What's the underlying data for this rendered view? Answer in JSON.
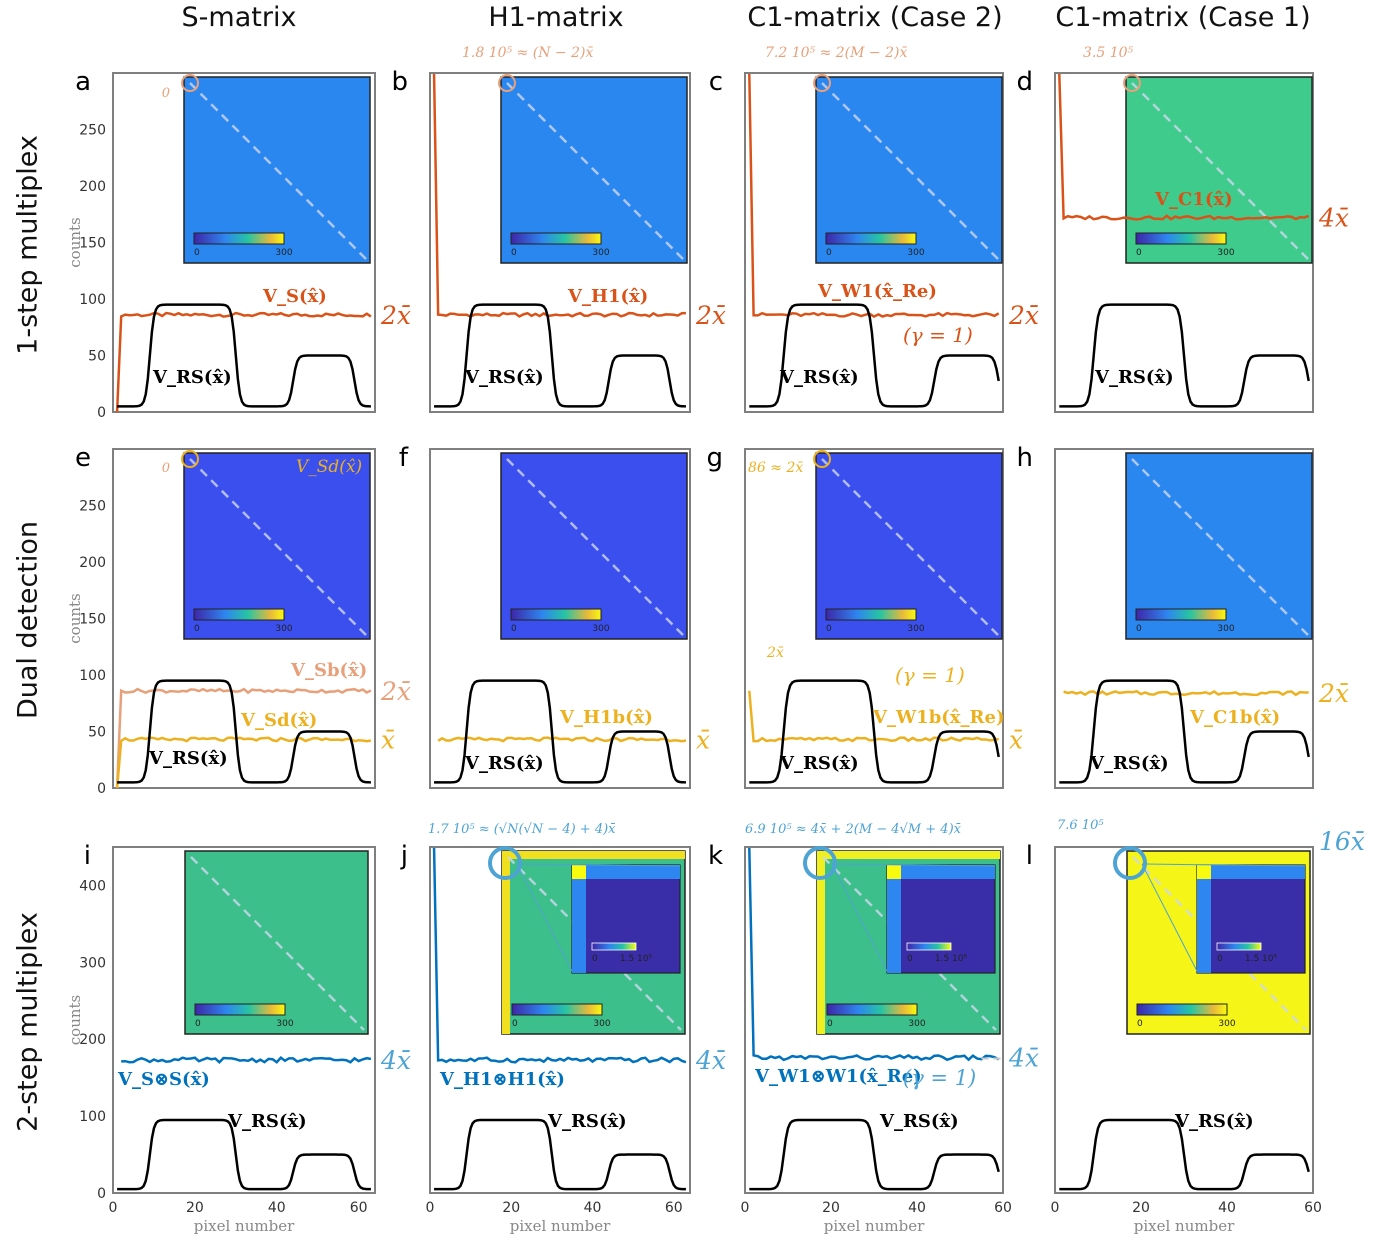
{
  "column_titles": [
    "S-matrix",
    "H1-matrix",
    "C1-matrix (Case 2)",
    "C1-matrix (Case 1)"
  ],
  "row_titles": [
    "1-step multiplex",
    "Dual detection",
    "2-step multiplex"
  ],
  "colors": {
    "orange": "#d95319",
    "light_orange": "#e8a07a",
    "yellow": "#edb120",
    "blue": "#0072bd",
    "light_blue": "#4da3d4",
    "black": "#000000",
    "gray_axis": "#7f7f7f",
    "dashed_ref": "#c8c8c8"
  },
  "chart_data": [
    {
      "type": "line",
      "panel": "a",
      "xlabel": "",
      "ylabel": "counts",
      "xlim": [
        0,
        64
      ],
      "ylim": [
        0,
        300
      ],
      "yticks": [
        0,
        50,
        100,
        150,
        200,
        250
      ],
      "series": [
        {
          "name": "V_S(x̂)",
          "color": "#d95319",
          "level": 86,
          "start": 0
        },
        {
          "name": "V_RS(x̂)",
          "color": "#000000",
          "profile": "rs"
        }
      ],
      "annotations": [
        {
          "text": "0",
          "color": "#e8a07a"
        }
      ],
      "right_label": "2x̄",
      "right_label_color": "#d95319",
      "series_labels": [
        {
          "text": "V_S(x̂)"
        },
        {
          "text": "V_RS(x̂)"
        }
      ],
      "inset": {
        "fill": "#2b87f0",
        "cbar_min": "0",
        "cbar_max": "300"
      }
    },
    {
      "type": "line",
      "panel": "b",
      "xlim": [
        0,
        64
      ],
      "ylim": [
        0,
        300
      ],
      "series": [
        {
          "name": "V_H1(x̂)",
          "color": "#d95319",
          "level": 86,
          "spike": 180000.0
        },
        {
          "name": "V_RS(x̂)",
          "color": "#000000",
          "profile": "rs"
        }
      ],
      "annotations": [
        {
          "text": "1.8 10⁵ ≈ (N − 2)x̄",
          "color": "#e8a07a"
        }
      ],
      "right_label": "2x̄",
      "right_label_color": "#d95319",
      "series_labels": [
        {
          "text": "V_H1(x̂)"
        },
        {
          "text": "V_RS(x̂)"
        }
      ],
      "inset": {
        "fill": "#2b87f0",
        "cbar_min": "0",
        "cbar_max": "300"
      }
    },
    {
      "type": "line",
      "panel": "c",
      "xlim": [
        0,
        60
      ],
      "ylim": [
        0,
        300
      ],
      "series": [
        {
          "name": "V_W1(x̂_Re)",
          "color": "#d95319",
          "level": 86,
          "spike": 720000.0
        },
        {
          "name": "V_RS(x̂)",
          "color": "#000000",
          "profile": "rs"
        }
      ],
      "annotations": [
        {
          "text": "7.2 10⁵ ≈ 2(M − 2)x̄",
          "color": "#e8a07a"
        },
        {
          "text": "(γ = 1)",
          "color": "#d95319"
        }
      ],
      "right_label": "2x̄",
      "right_label_color": "#d95319",
      "series_labels": [
        {
          "text": "V_W1(x̂_Re)"
        },
        {
          "text": "V_RS(x̂)"
        }
      ],
      "inset": {
        "fill": "#2b87f0",
        "cbar_min": "0",
        "cbar_max": "300"
      }
    },
    {
      "type": "line",
      "panel": "d",
      "xlim": [
        0,
        60
      ],
      "ylim": [
        0,
        300
      ],
      "series": [
        {
          "name": "V_C1(x̂)",
          "color": "#d95319",
          "level": 172,
          "spike": 350000.0
        },
        {
          "name": "V_RS(x̂)",
          "color": "#000000",
          "profile": "rs"
        }
      ],
      "annotations": [
        {
          "text": "3.5 10⁵",
          "color": "#e8a07a"
        }
      ],
      "right_label": "4x̄",
      "right_label_color": "#d95319",
      "series_labels": [
        {
          "text": "V_C1(x̂)"
        },
        {
          "text": "V_RS(x̂)"
        }
      ],
      "inset": {
        "fill": "#3fcb8c",
        "cbar_min": "0",
        "cbar_max": "300"
      }
    },
    {
      "type": "line",
      "panel": "e",
      "ylabel": "counts",
      "xlim": [
        0,
        64
      ],
      "ylim": [
        0,
        300
      ],
      "yticks": [
        0,
        50,
        100,
        150,
        200,
        250
      ],
      "series": [
        {
          "name": "V_Sb(x̂)",
          "color": "#e8a07a",
          "level": 86,
          "start": 0
        },
        {
          "name": "V_Sd(x̂)",
          "color": "#edb120",
          "level": 43,
          "start": 0
        },
        {
          "name": "V_RS(x̂)",
          "color": "#000000",
          "profile": "rs"
        }
      ],
      "annotations": [
        {
          "text": "0",
          "color": "#e8a07a"
        },
        {
          "text": "V_Sd(x̂)",
          "color": "#edb120"
        }
      ],
      "right_label": "2x̄",
      "right_label_color": "#e8a07a",
      "right_label2": "x̄",
      "right_label2_color": "#edb120",
      "series_labels": [
        {
          "text": "V_Sb(x̂)"
        },
        {
          "text": "V_Sd(x̂)"
        },
        {
          "text": "V_RS(x̂)"
        }
      ],
      "inset": {
        "fill": "#3a4fee",
        "cbar_min": "0",
        "cbar_max": "300"
      }
    },
    {
      "type": "line",
      "panel": "f",
      "xlim": [
        0,
        64
      ],
      "ylim": [
        0,
        300
      ],
      "series": [
        {
          "name": "V_H1b(x̂)",
          "color": "#edb120",
          "level": 43
        },
        {
          "name": "V_RS(x̂)",
          "color": "#000000",
          "profile": "rs"
        }
      ],
      "annotations": [],
      "right_label": "x̄",
      "right_label_color": "#edb120",
      "series_labels": [
        {
          "text": "V_H1b(x̂)"
        },
        {
          "text": "V_RS(x̂)"
        }
      ],
      "inset": {
        "fill": "#3a4fee",
        "cbar_min": "0",
        "cbar_max": "300"
      }
    },
    {
      "type": "line",
      "panel": "g",
      "xlim": [
        0,
        60
      ],
      "ylim": [
        0,
        300
      ],
      "series": [
        {
          "name": "V_W1b(x̂_Re)",
          "color": "#edb120",
          "level": 43,
          "start": 86
        },
        {
          "name": "V_RS(x̂)",
          "color": "#000000",
          "profile": "rs"
        }
      ],
      "annotations": [
        {
          "text": "86 ≈ 2x̄",
          "color": "#edb120"
        },
        {
          "text": "2x̄",
          "color": "#edb120"
        },
        {
          "text": "(γ = 1)",
          "color": "#edb120"
        }
      ],
      "right_label": "x̄",
      "right_label_color": "#edb120",
      "series_labels": [
        {
          "text": "V_W1b(x̂_Re)"
        },
        {
          "text": "V_RS(x̂)"
        }
      ],
      "inset": {
        "fill": "#3a4fee",
        "cbar_min": "0",
        "cbar_max": "300"
      }
    },
    {
      "type": "line",
      "panel": "h",
      "xlim": [
        0,
        60
      ],
      "ylim": [
        0,
        300
      ],
      "series": [
        {
          "name": "V_C1b(x̂)",
          "color": "#edb120",
          "level": 84
        },
        {
          "name": "V_RS(x̂)",
          "color": "#000000",
          "profile": "rs"
        }
      ],
      "annotations": [],
      "right_label": "2x̄",
      "right_label_color": "#edb120",
      "series_labels": [
        {
          "text": "V_C1b(x̂)"
        },
        {
          "text": "V_RS(x̂)"
        }
      ],
      "inset": {
        "fill": "#2b87f0",
        "cbar_min": "0",
        "cbar_max": "300"
      }
    },
    {
      "type": "line",
      "panel": "i",
      "xlabel": "pixel number",
      "ylabel": "counts",
      "xlim": [
        0,
        64
      ],
      "ylim": [
        0,
        450
      ],
      "yticks": [
        0,
        100,
        200,
        300,
        400
      ],
      "xticks": [
        0,
        20,
        40,
        60
      ],
      "series": [
        {
          "name": "V_S⊗S(x̂)",
          "color": "#0072bd",
          "level": 173
        },
        {
          "name": "V_RS(x̂)",
          "color": "#000000",
          "profile": "rs"
        }
      ],
      "annotations": [],
      "right_label": "4x̄",
      "right_label_color": "#4da3d4",
      "series_labels": [
        {
          "text": "V_S⊗S(x̂)"
        },
        {
          "text": "V_RS(x̂)"
        }
      ],
      "inset": {
        "fill": "#3cbf8a",
        "cbar_min": "0",
        "cbar_max": "300"
      }
    },
    {
      "type": "line",
      "panel": "j",
      "xlabel": "pixel number",
      "xlim": [
        0,
        64
      ],
      "ylim": [
        0,
        450
      ],
      "xticks": [
        0,
        20,
        40,
        60
      ],
      "series": [
        {
          "name": "V_H1⊗H1(x̂)",
          "color": "#0072bd",
          "level": 173,
          "spike": 170000.0
        },
        {
          "name": "V_RS(x̂)",
          "color": "#000000",
          "profile": "rs"
        }
      ],
      "annotations": [
        {
          "text": "1.7 10⁵ ≈ (√N(√N − 4) + 4)x̄",
          "color": "#4da3d4"
        }
      ],
      "right_label": "4x̄",
      "right_label_color": "#4da3d4",
      "series_labels": [
        {
          "text": "V_H1⊗H1(x̂)"
        },
        {
          "text": "V_RS(x̂)"
        }
      ],
      "inset": {
        "fill": "#3cbf8a",
        "edge": "#f0e020",
        "cbar_min": "0",
        "cbar_max": "300",
        "zoom_cbar_min": "0",
        "zoom_cbar_max": "1.5 10⁵"
      }
    },
    {
      "type": "line",
      "panel": "k",
      "xlabel": "pixel number",
      "xlim": [
        0,
        60
      ],
      "ylim": [
        0,
        450
      ],
      "xticks": [
        0,
        20,
        40,
        60
      ],
      "series": [
        {
          "name": "V_W1⊗W1(x̂_Re)",
          "color": "#0072bd",
          "level": 176,
          "spike": 690000.0
        },
        {
          "name": "V_RS(x̂)",
          "color": "#000000",
          "profile": "rs"
        }
      ],
      "annotations": [
        {
          "text": "6.9 10⁵ ≈ 4x̄ + 2(M − 4√M + 4)x̄",
          "color": "#4da3d4"
        },
        {
          "text": "(γ = 1)",
          "color": "#4da3d4"
        }
      ],
      "right_label": "4x̄",
      "right_label_color": "#4da3d4",
      "series_labels": [
        {
          "text": "V_W1⊗W1(x̂_Re)"
        },
        {
          "text": "V_RS(x̂)"
        }
      ],
      "inset": {
        "fill": "#3cbf8a",
        "edge": "#f0f020",
        "cbar_min": "0",
        "cbar_max": "300",
        "zoom_cbar_min": "0",
        "zoom_cbar_max": "1.5 10⁵"
      }
    },
    {
      "type": "line",
      "panel": "l",
      "xlabel": "pixel number",
      "xlim": [
        0,
        60
      ],
      "ylim": [
        0,
        450
      ],
      "xticks": [
        0,
        20,
        40,
        60
      ],
      "series": [
        {
          "name": "V_RS(x̂)",
          "color": "#000000",
          "profile": "rs"
        }
      ],
      "annotations": [
        {
          "text": "7.6 10⁵",
          "color": "#4da3d4"
        }
      ],
      "right_label": "16x̄",
      "right_label_color": "#4da3d4",
      "series_labels": [
        {
          "text": "V_RS(x̂)"
        }
      ],
      "inset": {
        "fill": "#f5f518",
        "cbar_min": "0",
        "cbar_max": "300",
        "zoom_cbar_min": "0",
        "zoom_cbar_max": "1.5 10⁵"
      }
    }
  ]
}
